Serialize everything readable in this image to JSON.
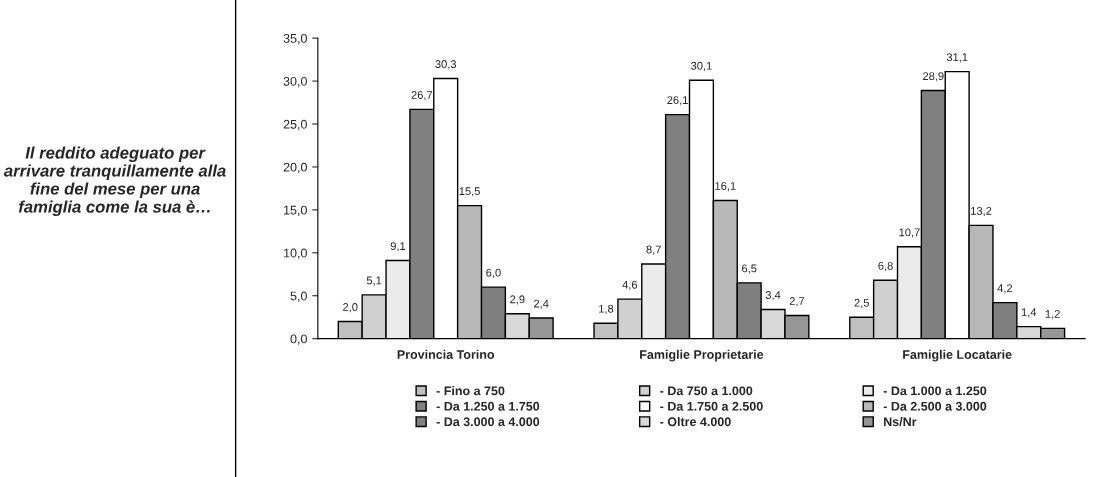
{
  "chart_data": {
    "type": "bar",
    "title": "Il reddito adeguato per arrivare tranquillamente alla fine del mese per una famiglia come la sua è…",
    "categories": [
      "Provincia Torino",
      "Famiglie Proprietarie",
      "Famiglie Locatarie"
    ],
    "series": [
      {
        "name": "- Fino a 750",
        "color": "#c0c0c0",
        "values": [
          2.0,
          1.8,
          2.5
        ],
        "value_labels": [
          "2,0",
          "1,8",
          "2,5"
        ]
      },
      {
        "name": "- Da 750 a 1.000",
        "color": "#d0d0d0",
        "values": [
          5.1,
          4.6,
          6.8
        ],
        "value_labels": [
          "5,1",
          "4,6",
          "6,8"
        ]
      },
      {
        "name": "- Da 1.000 a 1.250",
        "color": "#ebebeb",
        "values": [
          9.1,
          8.7,
          10.7
        ],
        "value_labels": [
          "9,1",
          "8,7",
          "10,7"
        ]
      },
      {
        "name": "- Da 1.250 a 1.750",
        "color": "#808080",
        "values": [
          26.7,
          26.1,
          28.9
        ],
        "value_labels": [
          "26,7",
          "26,1",
          "28,9"
        ]
      },
      {
        "name": "- Da 1.750 a 2.500",
        "color": "#ffffff",
        "values": [
          30.3,
          30.1,
          31.1
        ],
        "value_labels": [
          "30,3",
          "30,1",
          "31,1"
        ]
      },
      {
        "name": "- Da 2.500 a 3.000",
        "color": "#b8b8b8",
        "values": [
          15.5,
          16.1,
          13.2
        ],
        "value_labels": [
          "15,5",
          "16,1",
          "13,2"
        ]
      },
      {
        "name": "- Da 3.000 a 4.000",
        "color": "#7f7f7f",
        "values": [
          6.0,
          6.5,
          4.2
        ],
        "value_labels": [
          "6,0",
          "6,5",
          "4,2"
        ]
      },
      {
        "name": "- Oltre 4.000",
        "color": "#d8d8d8",
        "values": [
          2.9,
          3.4,
          1.4
        ],
        "value_labels": [
          "2,9",
          "3,4",
          "1,4"
        ]
      },
      {
        "name": "Ns/Nr",
        "color": "#969696",
        "values": [
          2.4,
          2.7,
          1.2
        ],
        "value_labels": [
          "2,4",
          "2,7",
          "1,2"
        ]
      }
    ],
    "ylim": [
      0,
      35
    ],
    "yticks": [
      {
        "value": 0,
        "label": "0,0"
      },
      {
        "value": 5,
        "label": "5,0"
      },
      {
        "value": 10,
        "label": "10,0"
      },
      {
        "value": 15,
        "label": "15,0"
      },
      {
        "value": 20,
        "label": "20,0"
      },
      {
        "value": 25,
        "label": "25,0"
      },
      {
        "value": 30,
        "label": "30,0"
      },
      {
        "value": 35,
        "label": "35,0"
      }
    ],
    "grid": false,
    "legend": "bottom"
  }
}
